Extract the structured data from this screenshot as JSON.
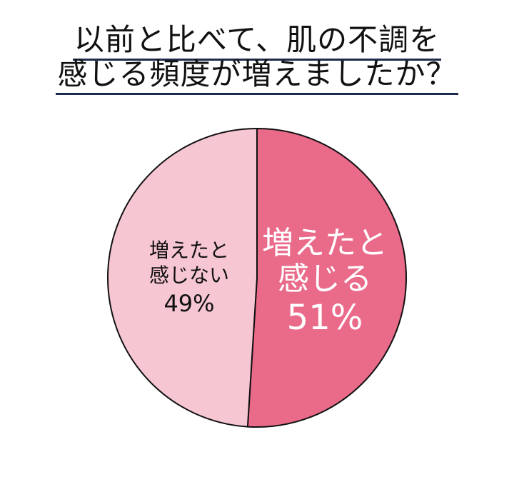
{
  "chart_data": {
    "type": "pie",
    "title": [
      "以前と比べて、肌の不調を",
      "感じる頻度が増えましたか？"
    ],
    "slices": [
      {
        "label": [
          "増えたと",
          "感じる"
        ],
        "value": 51,
        "value_label": "51%",
        "color": "#EA6A8A",
        "text_color": "#FFFFFF"
      },
      {
        "label": [
          "増えたと",
          "感じない"
        ],
        "value": 49,
        "value_label": "49%",
        "color": "#F7C6D3",
        "text_color": "#111111"
      }
    ],
    "start": "top",
    "direction": "clockwise"
  }
}
